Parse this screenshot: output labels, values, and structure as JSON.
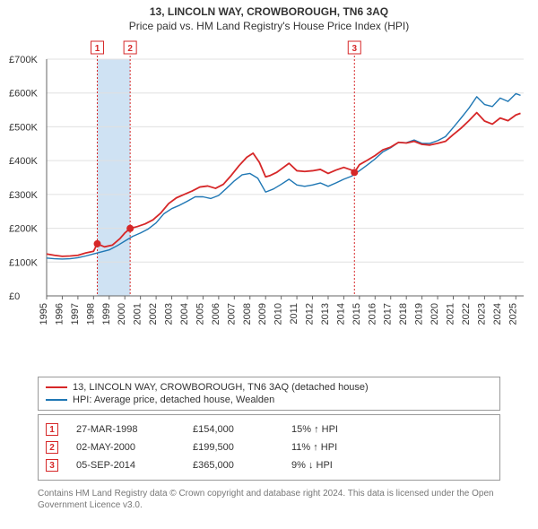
{
  "title": "13, LINCOLN WAY, CROWBOROUGH, TN6 3AQ",
  "subtitle": "Price paid vs. HM Land Registry's House Price Index (HPI)",
  "chart": {
    "type": "line",
    "background_color": "#ffffff",
    "grid_color": "#e0e0e0",
    "axis_color": "#666666",
    "ylim": [
      0,
      700000
    ],
    "yticks": [
      0,
      100000,
      200000,
      300000,
      400000,
      500000,
      600000,
      700000
    ],
    "ytick_labels": [
      "£0",
      "£100K",
      "£200K",
      "£300K",
      "£400K",
      "£500K",
      "£600K",
      "£700K"
    ],
    "xlim": [
      1995,
      2025.5
    ],
    "xticks": [
      1995,
      1996,
      1997,
      1998,
      1999,
      2000,
      2001,
      2002,
      2003,
      2004,
      2005,
      2006,
      2007,
      2008,
      2009,
      2010,
      2011,
      2012,
      2013,
      2014,
      2015,
      2016,
      2017,
      2018,
      2019,
      2020,
      2021,
      2022,
      2023,
      2024,
      2025
    ],
    "xtick_labels": [
      "1995",
      "1996",
      "1997",
      "1998",
      "1999",
      "2000",
      "2001",
      "2002",
      "2003",
      "2004",
      "2005",
      "2006",
      "2007",
      "2008",
      "2009",
      "2010",
      "2011",
      "2012",
      "2013",
      "2014",
      "2015",
      "2016",
      "2017",
      "2018",
      "2019",
      "2020",
      "2021",
      "2022",
      "2023",
      "2024",
      "2025"
    ],
    "series": [
      {
        "name": "13, LINCOLN WAY, CROWBOROUGH, TN6 3AQ (detached house)",
        "color": "#d62728",
        "line_width": 1.8,
        "data": [
          [
            1995.0,
            124000
          ],
          [
            1995.5,
            120000
          ],
          [
            1996.0,
            117000
          ],
          [
            1996.5,
            118000
          ],
          [
            1997.0,
            120000
          ],
          [
            1997.5,
            127000
          ],
          [
            1998.0,
            132000
          ],
          [
            1998.24,
            154000
          ],
          [
            1998.7,
            145000
          ],
          [
            1999.2,
            150000
          ],
          [
            1999.7,
            170000
          ],
          [
            2000.0,
            186000
          ],
          [
            2000.34,
            199500
          ],
          [
            2000.8,
            205000
          ],
          [
            2001.3,
            213000
          ],
          [
            2001.8,
            225000
          ],
          [
            2002.3,
            245000
          ],
          [
            2002.8,
            273000
          ],
          [
            2003.3,
            290000
          ],
          [
            2003.8,
            300000
          ],
          [
            2004.3,
            310000
          ],
          [
            2004.8,
            322000
          ],
          [
            2005.3,
            325000
          ],
          [
            2005.8,
            318000
          ],
          [
            2006.3,
            330000
          ],
          [
            2006.8,
            356000
          ],
          [
            2007.3,
            385000
          ],
          [
            2007.8,
            410000
          ],
          [
            2008.2,
            422000
          ],
          [
            2008.6,
            395000
          ],
          [
            2009.0,
            352000
          ],
          [
            2009.3,
            356000
          ],
          [
            2009.7,
            365000
          ],
          [
            2010.0,
            375000
          ],
          [
            2010.5,
            392000
          ],
          [
            2011.0,
            370000
          ],
          [
            2011.5,
            368000
          ],
          [
            2012.0,
            370000
          ],
          [
            2012.5,
            374000
          ],
          [
            2013.0,
            362000
          ],
          [
            2013.5,
            372000
          ],
          [
            2014.0,
            380000
          ],
          [
            2014.5,
            372000
          ],
          [
            2014.68,
            365000
          ],
          [
            2015.0,
            388000
          ],
          [
            2015.5,
            401000
          ],
          [
            2016.0,
            415000
          ],
          [
            2016.5,
            432000
          ],
          [
            2017.0,
            440000
          ],
          [
            2017.5,
            454000
          ],
          [
            2018.0,
            452000
          ],
          [
            2018.5,
            457000
          ],
          [
            2019.0,
            448000
          ],
          [
            2019.5,
            446000
          ],
          [
            2020.0,
            451000
          ],
          [
            2020.5,
            457000
          ],
          [
            2021.0,
            477000
          ],
          [
            2021.5,
            496000
          ],
          [
            2022.0,
            518000
          ],
          [
            2022.5,
            542000
          ],
          [
            2023.0,
            517000
          ],
          [
            2023.5,
            508000
          ],
          [
            2024.0,
            526000
          ],
          [
            2024.5,
            518000
          ],
          [
            2025.0,
            535000
          ],
          [
            2025.3,
            540000
          ]
        ]
      },
      {
        "name": "HPI: Average price, detached house, Wealden",
        "color": "#1f77b4",
        "line_width": 1.4,
        "data": [
          [
            1995.0,
            112000
          ],
          [
            1995.5,
            110000
          ],
          [
            1996.0,
            109000
          ],
          [
            1996.5,
            110000
          ],
          [
            1997.0,
            113000
          ],
          [
            1997.5,
            118000
          ],
          [
            1998.0,
            124000
          ],
          [
            1998.5,
            130000
          ],
          [
            1999.0,
            136000
          ],
          [
            1999.5,
            148000
          ],
          [
            2000.0,
            162000
          ],
          [
            2000.5,
            176000
          ],
          [
            2001.0,
            186000
          ],
          [
            2001.5,
            198000
          ],
          [
            2002.0,
            216000
          ],
          [
            2002.5,
            243000
          ],
          [
            2003.0,
            258000
          ],
          [
            2003.5,
            268000
          ],
          [
            2004.0,
            280000
          ],
          [
            2004.5,
            293000
          ],
          [
            2005.0,
            293000
          ],
          [
            2005.5,
            288000
          ],
          [
            2006.0,
            297000
          ],
          [
            2006.5,
            318000
          ],
          [
            2007.0,
            340000
          ],
          [
            2007.5,
            358000
          ],
          [
            2008.0,
            362000
          ],
          [
            2008.5,
            348000
          ],
          [
            2009.0,
            307000
          ],
          [
            2009.5,
            316000
          ],
          [
            2010.0,
            330000
          ],
          [
            2010.5,
            345000
          ],
          [
            2011.0,
            328000
          ],
          [
            2011.5,
            324000
          ],
          [
            2012.0,
            328000
          ],
          [
            2012.5,
            334000
          ],
          [
            2013.0,
            324000
          ],
          [
            2013.5,
            334000
          ],
          [
            2014.0,
            345000
          ],
          [
            2014.5,
            354000
          ],
          [
            2015.0,
            370000
          ],
          [
            2015.5,
            387000
          ],
          [
            2016.0,
            405000
          ],
          [
            2016.5,
            426000
          ],
          [
            2017.0,
            438000
          ],
          [
            2017.5,
            454000
          ],
          [
            2018.0,
            453000
          ],
          [
            2018.5,
            461000
          ],
          [
            2019.0,
            451000
          ],
          [
            2019.5,
            451000
          ],
          [
            2020.0,
            459000
          ],
          [
            2020.5,
            471000
          ],
          [
            2021.0,
            498000
          ],
          [
            2021.5,
            526000
          ],
          [
            2022.0,
            555000
          ],
          [
            2022.5,
            589000
          ],
          [
            2023.0,
            566000
          ],
          [
            2023.5,
            560000
          ],
          [
            2024.0,
            585000
          ],
          [
            2024.5,
            575000
          ],
          [
            2025.0,
            598000
          ],
          [
            2025.3,
            593000
          ]
        ]
      }
    ],
    "sale_points": [
      {
        "x": 1998.24,
        "y": 154000,
        "color": "#d62728",
        "radius": 4
      },
      {
        "x": 2000.34,
        "y": 199500,
        "color": "#d62728",
        "radius": 4
      },
      {
        "x": 2014.68,
        "y": 365000,
        "color": "#d62728",
        "radius": 4
      }
    ],
    "markers": [
      {
        "label": "1",
        "x": 1998.24,
        "box_color": "#d62728",
        "line_color": "#d62728"
      },
      {
        "label": "2",
        "x": 2000.34,
        "box_color": "#d62728",
        "line_color": "#d62728",
        "shade_to_prev": true,
        "shade_color": "#cfe2f3"
      },
      {
        "label": "3",
        "x": 2014.68,
        "box_color": "#d62728",
        "line_color": "#d62728"
      }
    ]
  },
  "legend": {
    "items": [
      {
        "color": "#d62728",
        "label": "13, LINCOLN WAY, CROWBOROUGH, TN6 3AQ (detached house)"
      },
      {
        "color": "#1f77b4",
        "label": "HPI: Average price, detached house, Wealden"
      }
    ]
  },
  "events": [
    {
      "marker": "1",
      "date": "27-MAR-1998",
      "price": "£154,000",
      "hpi": "15% ↑ HPI"
    },
    {
      "marker": "2",
      "date": "02-MAY-2000",
      "price": "£199,500",
      "hpi": "11% ↑ HPI"
    },
    {
      "marker": "3",
      "date": "05-SEP-2014",
      "price": "£365,000",
      "hpi": "9% ↓ HPI"
    }
  ],
  "attribution": "Contains HM Land Registry data © Crown copyright and database right 2024. This data is licensed under the Open Government Licence v3.0."
}
